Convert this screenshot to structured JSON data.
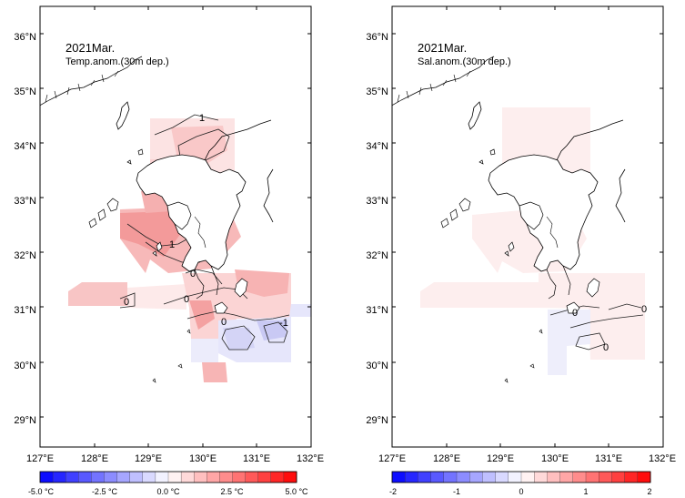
{
  "panels": [
    {
      "id": "temp",
      "title": "2021Mar.",
      "subtitle": "Temp.anom.(30m dep.)",
      "contour_labels": [
        "1",
        "1",
        "0",
        "0",
        "0",
        "0",
        "-1"
      ],
      "colorbar": {
        "tick_labels": [
          "-5.0 °C",
          "-2.5 °C",
          "0.0 °C",
          "2.5 °C",
          "5.0 °C"
        ],
        "min": -5.0,
        "max": 5.0,
        "steps": 20
      }
    },
    {
      "id": "sal",
      "title": "2021Mar.",
      "subtitle": "Sal.anom.(30m dep.)",
      "contour_labels": [
        "0",
        "0",
        "0"
      ],
      "colorbar": {
        "tick_labels": [
          "-2",
          "-1",
          "0",
          "1",
          "2"
        ],
        "min": -2,
        "max": 2,
        "steps": 20
      }
    }
  ],
  "axes": {
    "lat_labels": [
      "36°N",
      "35°N",
      "34°N",
      "33°N",
      "32°N",
      "31°N",
      "30°N",
      "29°N"
    ],
    "lon_labels": [
      "127°E",
      "128°E",
      "129°E",
      "130°E",
      "131°E",
      "132°E"
    ]
  },
  "colors": {
    "neg_strong": "#0000ff",
    "neutral": "#ffffff",
    "pos_strong": "#ff0000",
    "coast": "#000000"
  }
}
